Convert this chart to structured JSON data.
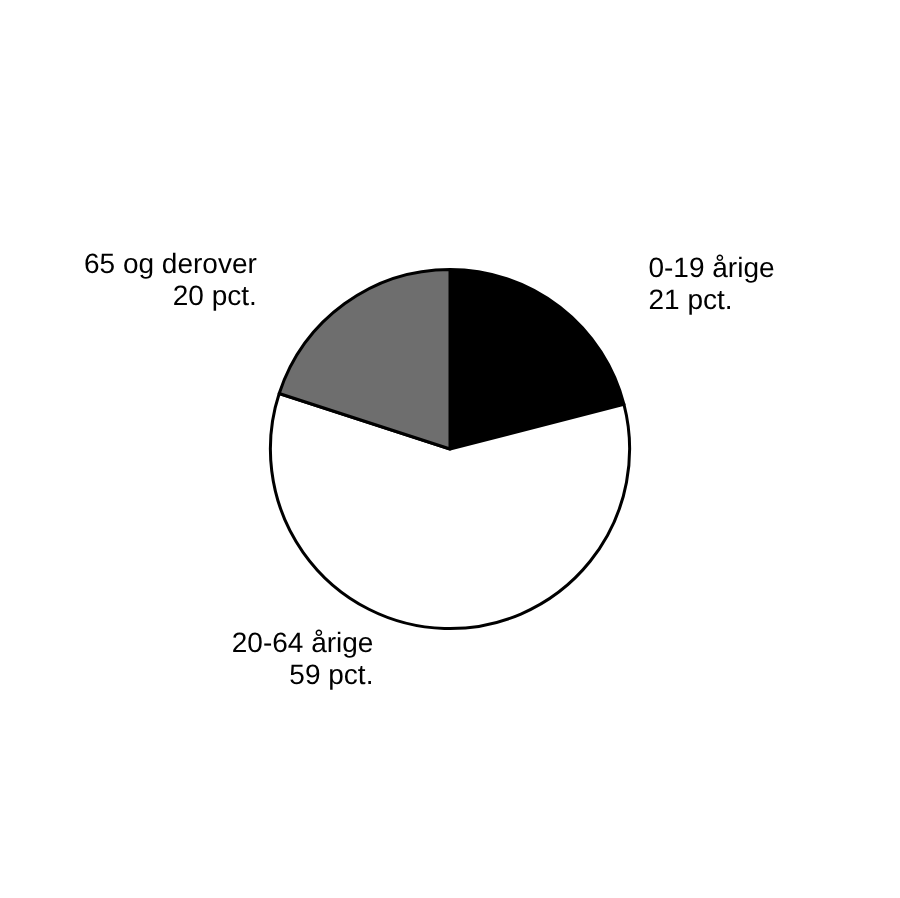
{
  "chart_data": {
    "type": "pie",
    "categories": [
      "0-19 årige",
      "20-64 årige",
      "65 og derover"
    ],
    "values": [
      21,
      59,
      20
    ],
    "value_labels": [
      "21 pct.",
      "59 pct.",
      "20 pct."
    ],
    "colors": [
      "#000000",
      "#ffffff",
      "#6e6e6e"
    ]
  }
}
